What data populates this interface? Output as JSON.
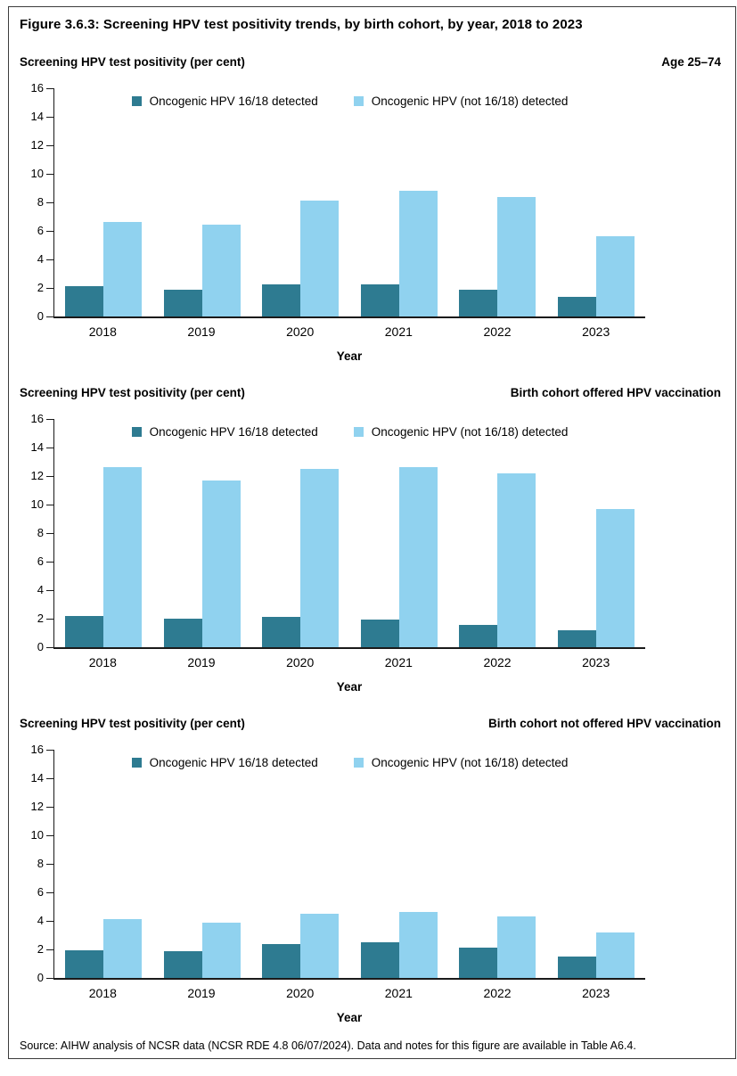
{
  "figure": {
    "title": "Figure 3.6.3: Screening HPV test positivity trends, by birth cohort, by year, 2018 to 2023",
    "source": "Source: AIHW analysis of NCSR data (NCSR RDE 4.8 06/07/2024). Data and notes for this figure are available in Table A6.4."
  },
  "colors": {
    "series1": "#2e7b91",
    "series2": "#90d2ef",
    "axis": "#1a1a1a",
    "border": "#3c3c3c"
  },
  "chart_data": [
    {
      "type": "bar",
      "title_left": "Screening HPV test positivity (per cent)",
      "title_right": "Age 25–74",
      "xlabel": "Year",
      "ylabel": "Screening HPV test positivity (per cent)",
      "ylim": [
        0,
        16
      ],
      "ytick_step": 2,
      "grid": false,
      "legend_position": "top-center",
      "categories": [
        "2018",
        "2019",
        "2020",
        "2021",
        "2022",
        "2023"
      ],
      "legend": [
        "Oncogenic HPV 16/18 detected",
        "Oncogenic HPV (not 16/18) detected"
      ],
      "series": [
        {
          "name": "Oncogenic HPV 16/18 detected",
          "values": [
            2.1,
            1.9,
            2.25,
            2.25,
            1.85,
            1.4
          ]
        },
        {
          "name": "Oncogenic HPV (not 16/18) detected",
          "values": [
            6.65,
            6.45,
            8.15,
            8.8,
            8.4,
            5.6
          ]
        }
      ]
    },
    {
      "type": "bar",
      "title_left": "Screening HPV test positivity (per cent)",
      "title_right": "Birth cohort offered HPV vaccination",
      "xlabel": "Year",
      "ylabel": "Screening HPV test positivity (per cent)",
      "ylim": [
        0,
        16
      ],
      "ytick_step": 2,
      "grid": false,
      "legend_position": "top-center",
      "categories": [
        "2018",
        "2019",
        "2020",
        "2021",
        "2022",
        "2023"
      ],
      "legend": [
        "Oncogenic HPV 16/18 detected",
        "Oncogenic HPV (not 16/18) detected"
      ],
      "series": [
        {
          "name": "Oncogenic HPV 16/18 detected",
          "values": [
            2.2,
            2.0,
            2.1,
            1.95,
            1.55,
            1.2
          ]
        },
        {
          "name": "Oncogenic HPV (not 16/18) detected",
          "values": [
            12.65,
            11.7,
            12.5,
            12.65,
            12.2,
            9.7
          ]
        }
      ]
    },
    {
      "type": "bar",
      "title_left": "Screening HPV test positivity (per cent)",
      "title_right": "Birth cohort not offered HPV vaccination",
      "xlabel": "Year",
      "ylabel": "Screening HPV test positivity (per cent)",
      "ylim": [
        0,
        16
      ],
      "ytick_step": 2,
      "grid": false,
      "legend_position": "top-center",
      "categories": [
        "2018",
        "2019",
        "2020",
        "2021",
        "2022",
        "2023"
      ],
      "legend": [
        "Oncogenic HPV 16/18 detected",
        "Oncogenic HPV (not 16/18) detected"
      ],
      "series": [
        {
          "name": "Oncogenic HPV 16/18 detected",
          "values": [
            1.95,
            1.9,
            2.4,
            2.5,
            2.1,
            1.5
          ]
        },
        {
          "name": "Oncogenic HPV (not 16/18) detected",
          "values": [
            4.1,
            3.9,
            4.5,
            4.6,
            4.3,
            3.2
          ]
        }
      ]
    }
  ]
}
